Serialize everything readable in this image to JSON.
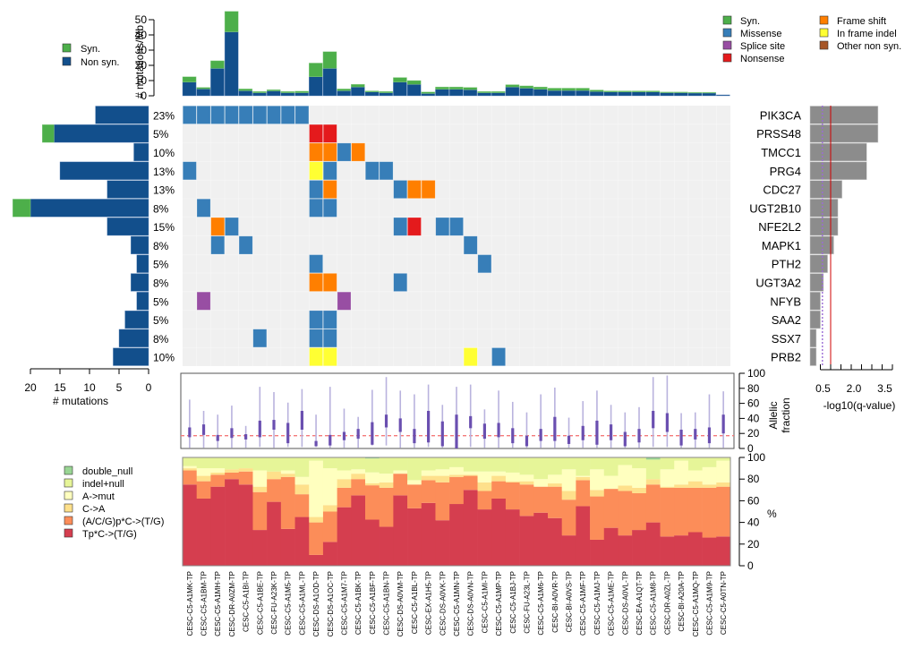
{
  "chart_data": {
    "type": "oncoplot",
    "samples": [
      "CESC-C5-A1MK-TP",
      "CESC-C5-A1BM-TP",
      "CESC-C5-A1MH-TP",
      "CESC-DR-A0ZM-TP",
      "CESC-C5-A1BI-TP",
      "CESC-C5-A1BE-TP",
      "CESC-FU-A23K-TP",
      "CESC-C5-A1M5-TP",
      "CESC-C5-A1ML-TP",
      "CESC-DS-A1OD-TP",
      "CESC-DS-A1OC-TP",
      "CESC-C5-A1M7-TP",
      "CESC-C5-A1BK-TP",
      "CESC-C5-A1BF-TP",
      "CESC-C5-A1BN-TP",
      "CESC-DS-A0VM-TP",
      "CESC-C5-A1BL-TP",
      "CESC-EX-A1H5-TP",
      "CESC-DS-A0VK-TP",
      "CESC-C5-A1MN-TP",
      "CESC-DS-A0VN-TP",
      "CESC-C5-A1MI-TP",
      "CESC-C5-A1MP-TP",
      "CESC-C5-A1BJ-TP",
      "CESC-FU-A23L-TP",
      "CESC-C5-A1M6-TP",
      "CESC-BI-A0VR-TP",
      "CESC-BI-A0VS-TP",
      "CESC-C5-A1MF-TP",
      "CESC-C5-A1MJ-TP",
      "CESC-C5-A1ME-TP",
      "CESC-DS-A0VL-TP",
      "CESC-EA-A1QT-TP",
      "CESC-C5-A1M8-TP",
      "CESC-DR-A0ZL-TP",
      "CESC-BI-A20A-TP",
      "CESC-C5-A1MQ-TP",
      "CESC-C5-A1M9-TP",
      "CESC-C5-A0TN-TP"
    ],
    "burden": {
      "title": "",
      "ylabel": "# mutations/Mb",
      "ylim": [
        0,
        55
      ],
      "yticks": [
        0,
        10,
        20,
        30,
        40,
        50
      ],
      "legend": [
        {
          "label": "Syn.",
          "color": "#4daf4a"
        },
        {
          "label": "Non syn.",
          "color": "#124f8c"
        }
      ],
      "nonsyn": [
        9,
        4.5,
        18,
        42,
        3.3,
        2,
        3.2,
        2,
        2,
        12.5,
        18,
        3.3,
        5.8,
        2.5,
        2,
        9,
        7.5,
        1.5,
        4.3,
        4.3,
        4,
        2,
        2,
        5.8,
        5,
        4.3,
        3.5,
        3.5,
        3.5,
        2.8,
        2.5,
        2.5,
        2.5,
        2.5,
        2,
        2,
        1.8,
        1.8,
        0.6
      ],
      "syn": [
        3.5,
        1,
        5,
        13.5,
        1.2,
        0.8,
        0.8,
        0.8,
        1,
        9,
        11,
        1.2,
        1.7,
        0.7,
        0.8,
        3,
        2.5,
        1,
        1.5,
        1.5,
        1.5,
        0.8,
        0.8,
        1.5,
        1.5,
        1.5,
        1.5,
        1.5,
        1.5,
        1,
        0.7,
        0.7,
        0.7,
        0.7,
        0.5,
        0.5,
        0.5,
        0.5,
        0
      ]
    },
    "mutation_legend": [
      {
        "label": "Syn.",
        "color": "#4daf4a"
      },
      {
        "label": "Missense",
        "color": "#377eb8"
      },
      {
        "label": "Splice site",
        "color": "#984ea3"
      },
      {
        "label": "Nonsense",
        "color": "#e41a1c"
      },
      {
        "label": "Frame shift",
        "color": "#ff7f00"
      },
      {
        "label": "In frame indel",
        "color": "#ffff33"
      },
      {
        "label": "Other non syn.",
        "color": "#a65628"
      }
    ],
    "genes": [
      {
        "name": "PIK3CA",
        "pct": "23%",
        "nonsyn": 9,
        "syn": 0,
        "neglog10q": 3.3
      },
      {
        "name": "PRSS48",
        "pct": "5%",
        "nonsyn": 16,
        "syn": 2,
        "neglog10q": 3.3
      },
      {
        "name": "TMCC1",
        "pct": "10%",
        "nonsyn": 2.5,
        "syn": 0,
        "neglog10q": 2.75
      },
      {
        "name": "PRG4",
        "pct": "13%",
        "nonsyn": 15,
        "syn": 0,
        "neglog10q": 2.75
      },
      {
        "name": "CDC27",
        "pct": "13%",
        "nonsyn": 7,
        "syn": 0,
        "neglog10q": 1.55
      },
      {
        "name": "UGT2B10",
        "pct": "8%",
        "nonsyn": 20,
        "syn": 3,
        "neglog10q": 1.35
      },
      {
        "name": "NFE2L2",
        "pct": "15%",
        "nonsyn": 7,
        "syn": 0,
        "neglog10q": 1.35
      },
      {
        "name": "MAPK1",
        "pct": "8%",
        "nonsyn": 3,
        "syn": 0,
        "neglog10q": 1.15
      },
      {
        "name": "PTH2",
        "pct": "5%",
        "nonsyn": 2,
        "syn": 0,
        "neglog10q": 0.85
      },
      {
        "name": "UGT3A2",
        "pct": "8%",
        "nonsyn": 3,
        "syn": 0,
        "neglog10q": 0.65
      },
      {
        "name": "NFYB",
        "pct": "5%",
        "nonsyn": 2,
        "syn": 0,
        "neglog10q": 0.5
      },
      {
        "name": "SAA2",
        "pct": "5%",
        "nonsyn": 4,
        "syn": 0,
        "neglog10q": 0.5
      },
      {
        "name": "SSX7",
        "pct": "8%",
        "nonsyn": 5,
        "syn": 0,
        "neglog10q": 0.3
      },
      {
        "name": "PRB2",
        "pct": "10%",
        "nonsyn": 6,
        "syn": 0,
        "neglog10q": 0.3
      }
    ],
    "gene_bar_axis": {
      "xlabel": "# mutations",
      "ticks": [
        20,
        15,
        10,
        5,
        0
      ],
      "xlim": [
        0,
        21
      ]
    },
    "qvalue_axis": {
      "xlabel": "-log10(q-value)",
      "ticks": [
        "0.5",
        "2.0",
        "3.5"
      ],
      "xlim": [
        0,
        4
      ],
      "threshold": 1.0,
      "dotted": 0.6
    },
    "cells": [
      [
        0,
        0,
        "Missense"
      ],
      [
        0,
        1,
        "Missense"
      ],
      [
        0,
        2,
        "Missense"
      ],
      [
        0,
        3,
        "Missense"
      ],
      [
        0,
        4,
        "Missense"
      ],
      [
        0,
        5,
        "Missense"
      ],
      [
        0,
        6,
        "Missense"
      ],
      [
        0,
        7,
        "Missense"
      ],
      [
        0,
        8,
        "Missense"
      ],
      [
        1,
        9,
        "Nonsense"
      ],
      [
        1,
        10,
        "Nonsense"
      ],
      [
        2,
        9,
        "Frame shift"
      ],
      [
        2,
        10,
        "Frame shift"
      ],
      [
        2,
        11,
        "Missense"
      ],
      [
        2,
        12,
        "Frame shift"
      ],
      [
        3,
        0,
        "Missense"
      ],
      [
        3,
        9,
        "In frame indel"
      ],
      [
        3,
        10,
        "Missense"
      ],
      [
        3,
        13,
        "Missense"
      ],
      [
        3,
        14,
        "Missense"
      ],
      [
        4,
        9,
        "Missense"
      ],
      [
        4,
        10,
        "Frame shift"
      ],
      [
        4,
        15,
        "Missense"
      ],
      [
        4,
        16,
        "Frame shift"
      ],
      [
        4,
        17,
        "Frame shift"
      ],
      [
        5,
        1,
        "Missense"
      ],
      [
        5,
        9,
        "Missense"
      ],
      [
        5,
        10,
        "Missense"
      ],
      [
        6,
        2,
        "Frame shift"
      ],
      [
        6,
        3,
        "Missense"
      ],
      [
        6,
        15,
        "Missense"
      ],
      [
        6,
        16,
        "Nonsense"
      ],
      [
        6,
        18,
        "Missense"
      ],
      [
        6,
        19,
        "Missense"
      ],
      [
        7,
        2,
        "Missense"
      ],
      [
        7,
        4,
        "Missense"
      ],
      [
        7,
        20,
        "Missense"
      ],
      [
        8,
        9,
        "Missense"
      ],
      [
        8,
        21,
        "Missense"
      ],
      [
        9,
        9,
        "Frame shift"
      ],
      [
        9,
        10,
        "Frame shift"
      ],
      [
        9,
        15,
        "Missense"
      ],
      [
        10,
        1,
        "Splice site"
      ],
      [
        10,
        11,
        "Splice site"
      ],
      [
        11,
        9,
        "Missense"
      ],
      [
        11,
        10,
        "Missense"
      ],
      [
        12,
        5,
        "Missense"
      ],
      [
        12,
        9,
        "Missense"
      ],
      [
        12,
        10,
        "Missense"
      ],
      [
        13,
        9,
        "In frame indel"
      ],
      [
        13,
        10,
        "In frame indel"
      ],
      [
        13,
        20,
        "In frame indel"
      ],
      [
        13,
        22,
        "Missense"
      ]
    ],
    "allelic": {
      "ylabel": "Allelic fraction",
      "ylim": [
        0,
        100
      ],
      "yticks": [
        0,
        20,
        40,
        60,
        80,
        100
      ],
      "threshold": 17,
      "samples": [
        [
          1,
          65,
          15,
          28
        ],
        [
          1,
          50,
          18,
          32
        ],
        [
          1,
          45,
          10,
          18
        ],
        [
          1,
          57,
          14,
          27
        ],
        [
          1,
          30,
          12,
          19
        ],
        [
          2,
          82,
          15,
          37
        ],
        [
          1,
          75,
          25,
          38
        ],
        [
          2,
          61,
          7,
          34
        ],
        [
          2,
          79,
          25,
          50
        ],
        [
          2,
          45,
          3,
          10
        ],
        [
          1,
          82,
          4,
          18
        ],
        [
          1,
          53,
          11,
          22
        ],
        [
          1,
          42,
          13,
          26
        ],
        [
          4,
          78,
          5,
          35
        ],
        [
          4,
          95,
          28,
          45
        ],
        [
          1,
          77,
          22,
          40
        ],
        [
          1,
          72,
          7,
          26
        ],
        [
          2,
          85,
          8,
          50
        ],
        [
          1,
          58,
          3,
          36
        ],
        [
          1,
          82,
          0,
          45
        ],
        [
          2,
          85,
          27,
          43
        ],
        [
          1,
          52,
          13,
          33
        ],
        [
          1,
          77,
          15,
          34
        ],
        [
          1,
          62,
          7,
          27
        ],
        [
          1,
          48,
          3,
          17
        ],
        [
          1,
          72,
          10,
          26
        ],
        [
          1,
          81,
          10,
          42
        ],
        [
          1,
          41,
          6,
          17
        ],
        [
          1,
          63,
          11,
          30
        ],
        [
          1,
          77,
          5,
          37
        ],
        [
          1,
          58,
          11,
          32
        ],
        [
          1,
          48,
          3,
          22
        ],
        [
          1,
          55,
          8,
          26
        ],
        [
          2,
          95,
          27,
          50
        ],
        [
          2,
          97,
          22,
          47
        ],
        [
          1,
          47,
          4,
          25
        ],
        [
          1,
          48,
          12,
          26
        ],
        [
          1,
          72,
          7,
          28
        ],
        [
          1,
          76,
          20,
          45
        ]
      ]
    },
    "spectrum": {
      "ylabel": "%",
      "ylim": [
        0,
        100
      ],
      "yticks": [
        0,
        20,
        40,
        60,
        80,
        100
      ],
      "legend": [
        {
          "label": "double_null",
          "color": "#99d594"
        },
        {
          "label": "indel+null",
          "color": "#e6f598"
        },
        {
          "label": "A->mut",
          "color": "#ffffbf"
        },
        {
          "label": "C->A",
          "color": "#fee08b"
        },
        {
          "label": "(A/C/G)p*C->(T/G)",
          "color": "#fc8d59"
        },
        {
          "label": "Tp*C->(T/G)",
          "color": "#d53e4f"
        }
      ],
      "stack_order": [
        "Tp*C->(T/G)",
        "(A/C/G)p*C->(T/G)",
        "C->A",
        "A->mut",
        "indel+null",
        "double_null"
      ],
      "samples": [
        [
          75,
          13,
          2,
          2,
          8,
          0
        ],
        [
          62,
          16,
          5,
          7,
          10,
          0
        ],
        [
          73,
          11,
          2,
          4,
          10,
          0
        ],
        [
          80,
          6,
          3,
          0,
          11,
          0
        ],
        [
          75,
          12,
          3,
          0,
          10,
          0
        ],
        [
          33,
          35,
          5,
          15,
          12,
          0
        ],
        [
          59,
          21,
          7,
          0,
          13,
          0
        ],
        [
          34,
          48,
          3,
          3,
          12,
          0
        ],
        [
          45,
          21,
          9,
          7,
          18,
          0
        ],
        [
          10,
          30,
          5,
          52,
          3,
          0
        ],
        [
          22,
          28,
          6,
          34,
          10,
          0
        ],
        [
          54,
          18,
          8,
          8,
          12,
          0
        ],
        [
          65,
          15,
          5,
          4,
          11,
          0
        ],
        [
          43,
          32,
          2,
          10,
          13,
          1
        ],
        [
          36,
          36,
          5,
          8,
          15,
          0
        ],
        [
          65,
          20,
          0,
          3,
          12,
          0
        ],
        [
          53,
          22,
          0,
          4,
          21,
          0
        ],
        [
          58,
          21,
          4,
          5,
          12,
          0
        ],
        [
          42,
          35,
          6,
          6,
          11,
          0
        ],
        [
          57,
          25,
          2,
          7,
          9,
          0
        ],
        [
          70,
          13,
          1,
          3,
          13,
          0
        ],
        [
          52,
          17,
          8,
          10,
          13,
          0
        ],
        [
          62,
          16,
          5,
          4,
          13,
          0
        ],
        [
          52,
          25,
          1,
          8,
          14,
          0
        ],
        [
          46,
          29,
          3,
          6,
          16,
          0
        ],
        [
          49,
          24,
          0,
          7,
          20,
          0
        ],
        [
          44,
          29,
          3,
          8,
          16,
          0
        ],
        [
          28,
          33,
          8,
          20,
          11,
          0
        ],
        [
          55,
          24,
          3,
          1,
          17,
          0
        ],
        [
          24,
          40,
          6,
          19,
          11,
          0
        ],
        [
          35,
          36,
          0,
          12,
          17,
          0
        ],
        [
          28,
          41,
          5,
          19,
          7,
          0
        ],
        [
          33,
          34,
          5,
          18,
          10,
          0
        ],
        [
          40,
          35,
          5,
          0,
          18,
          2
        ],
        [
          27,
          45,
          1,
          16,
          11,
          0
        ],
        [
          28,
          44,
          3,
          22,
          3,
          0
        ],
        [
          31,
          41,
          6,
          10,
          12,
          0
        ],
        [
          26,
          46,
          3,
          16,
          9,
          0
        ],
        [
          27,
          46,
          4,
          20,
          3,
          0
        ]
      ]
    }
  }
}
